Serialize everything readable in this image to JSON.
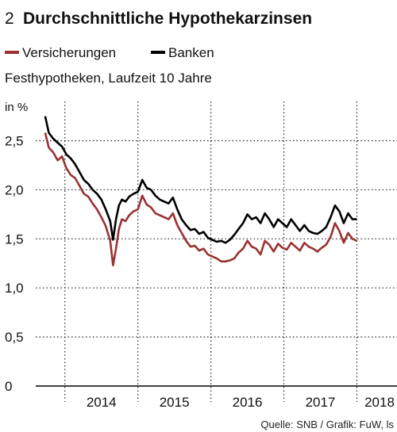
{
  "chart_data": {
    "type": "line",
    "number": "2",
    "title": "Durchschnittliche Hypothekarzinsen",
    "subtitle": "Festhypotheken, Laufzeit 10 Jahre",
    "unit_label": "in %",
    "source": "Quelle: SNB / Grafik: FuW, ls",
    "ylim": [
      0,
      2.9
    ],
    "y_ticks": [
      0,
      0.5,
      1.0,
      1.5,
      2.0,
      2.5
    ],
    "y_tick_labels": [
      "0",
      "0,5",
      "1,0",
      "1,5",
      "2,0",
      "2,5"
    ],
    "x_ticks": [
      "2014",
      "2015",
      "2016",
      "2017",
      "2018"
    ],
    "xlim": [
      2013.6,
      2018.55
    ],
    "grid": "dotted",
    "legend_position": "top-left",
    "series": [
      {
        "name": "Versicherungen",
        "color": "#9b3232",
        "x": [
          2013.73,
          2013.78,
          2013.84,
          2013.9,
          2013.96,
          2014.02,
          2014.08,
          2014.14,
          2014.2,
          2014.26,
          2014.32,
          2014.38,
          2014.44,
          2014.5,
          2014.56,
          2014.62,
          2014.66,
          2014.7,
          2014.74,
          2014.78,
          2014.83,
          2014.88,
          2014.94,
          2015.0,
          2015.06,
          2015.12,
          2015.18,
          2015.24,
          2015.3,
          2015.36,
          2015.42,
          2015.48,
          2015.54,
          2015.6,
          2015.66,
          2015.72,
          2015.78,
          2015.84,
          2015.9,
          2015.96,
          2016.02,
          2016.08,
          2016.14,
          2016.2,
          2016.26,
          2016.32,
          2016.38,
          2016.44,
          2016.5,
          2016.56,
          2016.62,
          2016.68,
          2016.74,
          2016.8,
          2016.86,
          2016.92,
          2016.98,
          2017.04,
          2017.1,
          2017.16,
          2017.22,
          2017.28,
          2017.34,
          2017.4,
          2017.46,
          2017.52,
          2017.58,
          2017.64,
          2017.7,
          2017.76,
          2017.82,
          2017.88,
          2017.94,
          2018.0
        ],
        "values": [
          2.58,
          2.43,
          2.38,
          2.3,
          2.34,
          2.22,
          2.15,
          2.12,
          2.04,
          1.96,
          1.93,
          1.86,
          1.8,
          1.72,
          1.63,
          1.48,
          1.23,
          1.4,
          1.6,
          1.7,
          1.68,
          1.74,
          1.78,
          1.8,
          1.94,
          1.85,
          1.82,
          1.76,
          1.74,
          1.72,
          1.7,
          1.76,
          1.64,
          1.56,
          1.48,
          1.42,
          1.43,
          1.38,
          1.4,
          1.34,
          1.32,
          1.3,
          1.27,
          1.27,
          1.28,
          1.3,
          1.36,
          1.4,
          1.48,
          1.42,
          1.4,
          1.34,
          1.48,
          1.44,
          1.37,
          1.45,
          1.41,
          1.39,
          1.46,
          1.42,
          1.38,
          1.46,
          1.42,
          1.4,
          1.37,
          1.41,
          1.44,
          1.52,
          1.66,
          1.58,
          1.46,
          1.56,
          1.5,
          1.48
        ]
      },
      {
        "name": "Banken",
        "color": "#000000",
        "x": [
          2013.73,
          2013.78,
          2013.84,
          2013.9,
          2013.96,
          2014.02,
          2014.08,
          2014.14,
          2014.2,
          2014.26,
          2014.32,
          2014.38,
          2014.44,
          2014.5,
          2014.56,
          2014.62,
          2014.66,
          2014.7,
          2014.74,
          2014.78,
          2014.83,
          2014.88,
          2014.94,
          2015.0,
          2015.06,
          2015.12,
          2015.18,
          2015.24,
          2015.3,
          2015.36,
          2015.42,
          2015.48,
          2015.54,
          2015.6,
          2015.66,
          2015.72,
          2015.78,
          2015.84,
          2015.9,
          2015.96,
          2016.02,
          2016.08,
          2016.14,
          2016.2,
          2016.26,
          2016.32,
          2016.38,
          2016.44,
          2016.5,
          2016.56,
          2016.62,
          2016.68,
          2016.74,
          2016.8,
          2016.86,
          2016.92,
          2016.98,
          2017.04,
          2017.1,
          2017.16,
          2017.22,
          2017.28,
          2017.34,
          2017.4,
          2017.46,
          2017.52,
          2017.58,
          2017.64,
          2017.7,
          2017.76,
          2017.82,
          2017.88,
          2017.94,
          2018.0
        ],
        "values": [
          2.75,
          2.58,
          2.52,
          2.48,
          2.44,
          2.36,
          2.32,
          2.26,
          2.18,
          2.1,
          2.06,
          2.0,
          1.96,
          1.9,
          1.8,
          1.68,
          1.49,
          1.7,
          1.84,
          1.9,
          1.88,
          1.93,
          1.96,
          1.98,
          2.1,
          2.02,
          2.0,
          1.94,
          1.9,
          1.88,
          1.86,
          1.92,
          1.8,
          1.7,
          1.64,
          1.59,
          1.6,
          1.55,
          1.57,
          1.51,
          1.49,
          1.47,
          1.48,
          1.46,
          1.49,
          1.54,
          1.6,
          1.66,
          1.75,
          1.7,
          1.72,
          1.66,
          1.76,
          1.7,
          1.62,
          1.7,
          1.66,
          1.62,
          1.7,
          1.64,
          1.58,
          1.64,
          1.58,
          1.56,
          1.55,
          1.58,
          1.62,
          1.72,
          1.84,
          1.78,
          1.66,
          1.76,
          1.7,
          1.7
        ]
      }
    ]
  }
}
